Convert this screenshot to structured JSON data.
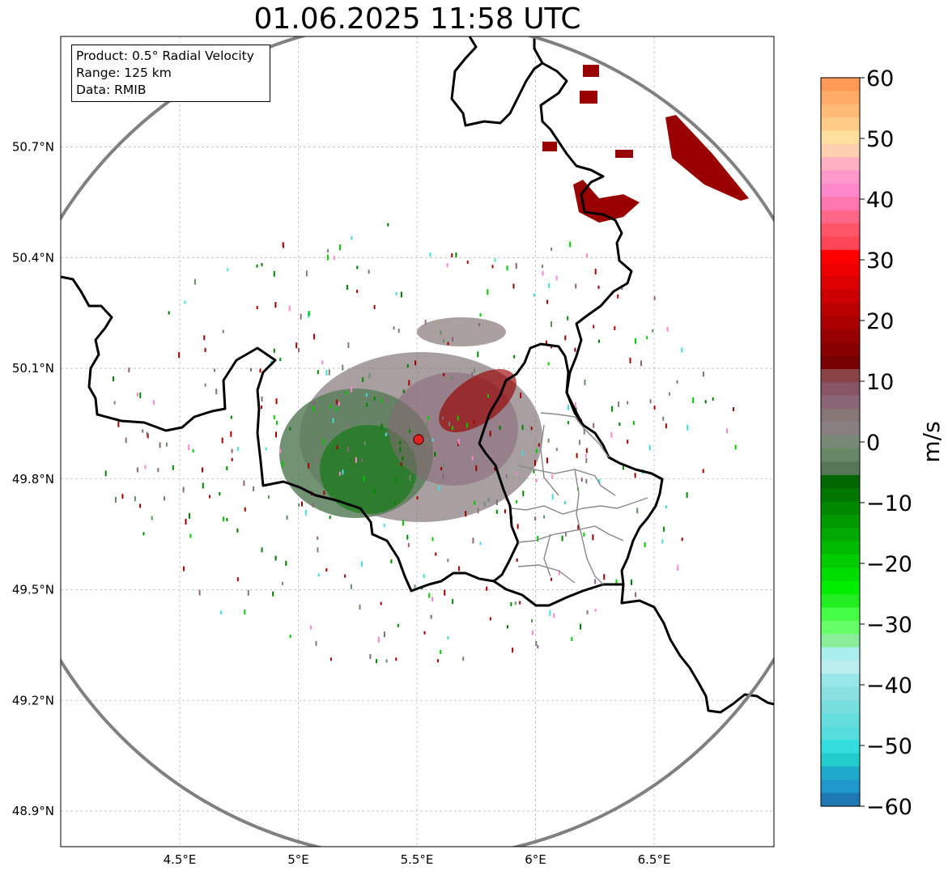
{
  "title": "01.06.2025 11:58 UTC",
  "info": {
    "product": "Product: 0.5° Radial Velocity",
    "range": "Range: 125 km",
    "data": "Data: RMIB"
  },
  "map": {
    "lon_range": [
      4.0,
      6.98
    ],
    "lat_range": [
      48.8,
      51.0
    ],
    "lon_ticks": [
      {
        "value": 4.5,
        "label": "4.5°E"
      },
      {
        "value": 5.0,
        "label": "5°E"
      },
      {
        "value": 5.5,
        "label": "5.5°E"
      },
      {
        "value": 6.0,
        "label": "6°E"
      },
      {
        "value": 6.5,
        "label": "6.5°E"
      }
    ],
    "lat_ticks": [
      {
        "value": 50.7,
        "label": "50.7°N"
      },
      {
        "value": 50.4,
        "label": "50.4°N"
      },
      {
        "value": 50.1,
        "label": "50.1°N"
      },
      {
        "value": 49.8,
        "label": "49.8°N"
      },
      {
        "value": 49.5,
        "label": "49.5°N"
      },
      {
        "value": 49.2,
        "label": "49.2°N"
      },
      {
        "value": 48.9,
        "label": "48.9°N"
      }
    ],
    "radar_site": {
      "lon": 5.505,
      "lat": 49.915
    },
    "range_km": 125
  },
  "colorbar": {
    "unit": "m/s",
    "vmin": -60,
    "vmax": 60,
    "tick_values": [
      60,
      50,
      40,
      30,
      20,
      10,
      0,
      -10,
      -20,
      -30,
      -40,
      -50,
      -60
    ],
    "tick_labels": [
      "60",
      "50",
      "40",
      "30",
      "20",
      "10",
      "0",
      "−10",
      "−20",
      "−30",
      "−40",
      "−50",
      "−60"
    ],
    "colors_top_to_bottom": [
      "#ff9955",
      "#ffaa66",
      "#ffbb77",
      "#ffcc88",
      "#ffe09e",
      "#ffd0b0",
      "#ffb0c0",
      "#ff99cc",
      "#ff88cc",
      "#ff77b0",
      "#ff6688",
      "#ff5566",
      "#ff4455",
      "#ff0000",
      "#ee0000",
      "#dd0000",
      "#cc0000",
      "#bb0000",
      "#aa0000",
      "#990000",
      "#880000",
      "#770000",
      "#884444",
      "#885566",
      "#886677",
      "#887777",
      "#888080",
      "#778877",
      "#668866",
      "#557755",
      "#006600",
      "#007700",
      "#008800",
      "#009900",
      "#00aa00",
      "#00bb00",
      "#00cc00",
      "#00dd00",
      "#00ee00",
      "#22ee22",
      "#44ff44",
      "#66ff66",
      "#88ee99",
      "#aaeeee",
      "#bbeeee",
      "#99e6e6",
      "#88e0e0",
      "#77dddd",
      "#66dddd",
      "#55dddd",
      "#33dddd",
      "#22cccc",
      "#1faacc",
      "#1f99cc",
      "#1f77b4"
    ]
  }
}
